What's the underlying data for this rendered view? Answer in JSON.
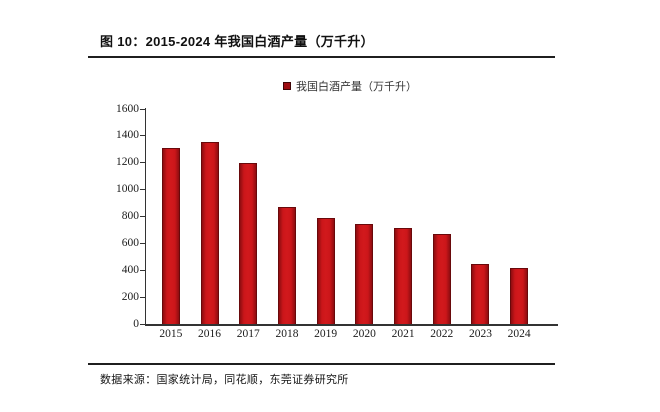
{
  "page": {
    "background_color": "#ffffff",
    "rule_color": "#1f1f1f"
  },
  "figure": {
    "title": "图 10：2015-2024 年我国白酒产量（万千升）",
    "source": "数据来源：国家统计局，同花顺，东莞证券研究所"
  },
  "legend": {
    "label": "我国白酒产量（万千升）",
    "marker_color": "#9e0d12",
    "marker_border_color": "#3f0507"
  },
  "chart_data": {
    "type": "bar",
    "title": "2015-2024 年我国白酒产量（万千升）",
    "categories": [
      "2015",
      "2016",
      "2017",
      "2018",
      "2019",
      "2020",
      "2021",
      "2022",
      "2023",
      "2024"
    ],
    "values": [
      1313,
      1358,
      1198,
      871,
      786,
      741,
      716,
      671,
      449,
      415
    ],
    "series_name": "我国白酒产量（万千升）",
    "xlabel": "",
    "ylabel": "",
    "ylim": [
      0,
      1600
    ],
    "yticks": [
      0,
      200,
      400,
      600,
      800,
      1000,
      1200,
      1400,
      1600
    ],
    "grid": false,
    "legend_position": "top-center",
    "bar_color": "#cb161a",
    "bar_border_color": "#69090b",
    "axis_color": "#333333"
  }
}
